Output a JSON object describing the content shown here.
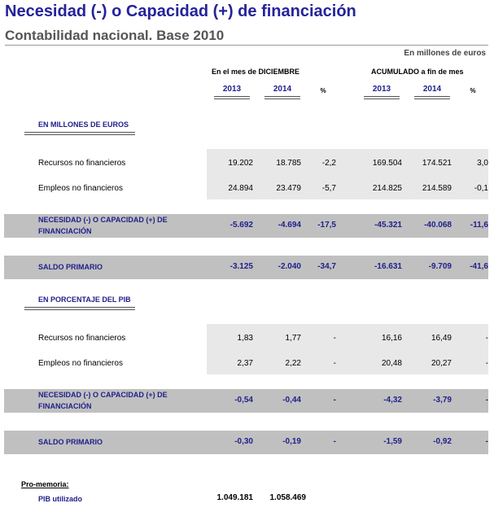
{
  "title": "Necesidad (-) o Capacidad (+) de financiación",
  "subtitle": "Contabilidad nacional. Base 2010",
  "unit_note": "En millones de euros",
  "groups": [
    "En el mes de DICIEMBRE",
    "ACUMULADO a fin de mes"
  ],
  "columns": [
    "2013",
    "2014",
    "%",
    "2013",
    "2014",
    "%"
  ],
  "sections": [
    {
      "title": "EN MILLONES DE EUROS",
      "rows": [
        {
          "label": "Recursos no financieros",
          "values": [
            "19.202",
            "18.785",
            "-2,2",
            "169.504",
            "174.521",
            "3,0"
          ]
        },
        {
          "label": "Empleos no financieros",
          "values": [
            "24.894",
            "23.479",
            "-5,7",
            "214.825",
            "214.589",
            "-0,1"
          ]
        }
      ],
      "totals": [
        {
          "label": "NECESIDAD (-) O CAPACIDAD (+) DE FINANCIACIÓN",
          "values": [
            "-5.692",
            "-4.694",
            "-17,5",
            "-45.321",
            "-40.068",
            "-11,6"
          ]
        },
        {
          "label": "SALDO PRIMARIO",
          "values": [
            "-3.125",
            "-2.040",
            "-34,7",
            "-16.631",
            "-9.709",
            "-41,6"
          ]
        }
      ]
    },
    {
      "title": "EN PORCENTAJE DEL PIB",
      "rows": [
        {
          "label": "Recursos no financieros",
          "values": [
            "1,83",
            "1,77",
            "-",
            "16,16",
            "16,49",
            "-"
          ]
        },
        {
          "label": "Empleos no financieros",
          "values": [
            "2,37",
            "2,22",
            "-",
            "20,48",
            "20,27",
            "-"
          ]
        }
      ],
      "totals": [
        {
          "label": "NECESIDAD (-) O CAPACIDAD (+) DE FINANCIACIÓN",
          "values": [
            "-0,54",
            "-0,44",
            "-",
            "-4,32",
            "-3,79",
            "-"
          ]
        },
        {
          "label": "SALDO PRIMARIO",
          "values": [
            "-0,30",
            "-0,19",
            "-",
            "-1,59",
            "-0,92",
            "-"
          ]
        }
      ]
    }
  ],
  "memo": {
    "title": "Pro-memoria:",
    "label": "PIB utilizado",
    "values": [
      "1.049.181",
      "1.058.469"
    ]
  }
}
